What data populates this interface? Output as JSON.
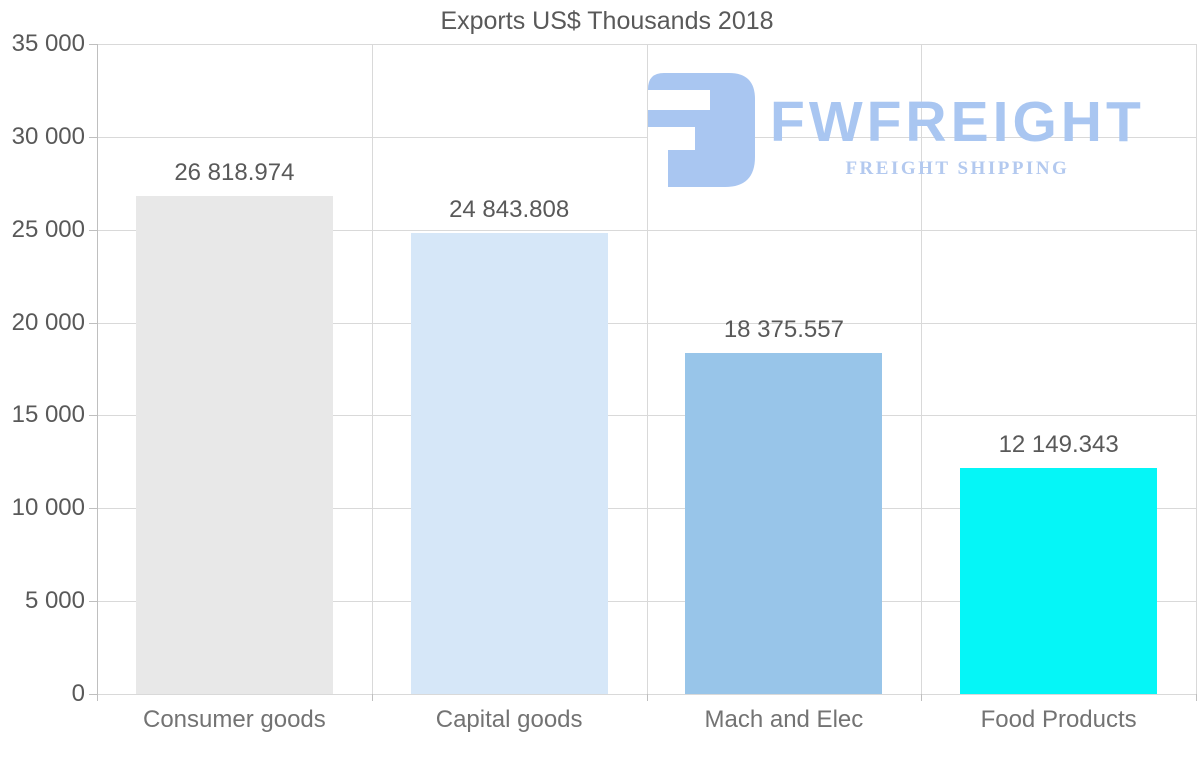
{
  "title": "Exports US$ Thousands 2018",
  "logo": {
    "wordmark": "FWFREIGHT",
    "subtitle": "FREIGHT SHIPPING",
    "wordmark_color": "#a9c6f1",
    "subtitle_color": "#b3c9ef",
    "icon": "rounded-square-f-glyph"
  },
  "chart_data": {
    "type": "bar",
    "title": "Exports US$ Thousands 2018",
    "categories": [
      "Consumer goods",
      "Capital goods",
      "Mach and Elec",
      "Food Products"
    ],
    "values": [
      26818.974,
      24843.808,
      18375.557,
      12149.343
    ],
    "value_labels": [
      "26 818.974",
      "24 843.808",
      "18 375.557",
      "12 149.343"
    ],
    "bar_colors": [
      "#e8e8e8",
      "#d6e7f8",
      "#98c5e9",
      "#05f6f7"
    ],
    "xlabel": "",
    "ylabel": "",
    "ylim": [
      0,
      35000
    ],
    "ytick_step": 5000,
    "ytick_labels": [
      "0",
      "5 000",
      "10 000",
      "15 000",
      "20 000",
      "25 000",
      "30 000",
      "35 000"
    ],
    "grid": true,
    "legend": false
  },
  "colors": {
    "text": "#595959",
    "category_text": "#737373",
    "gridline": "#d9d9d9",
    "axis": "#bfbfbf",
    "background": "#ffffff"
  }
}
